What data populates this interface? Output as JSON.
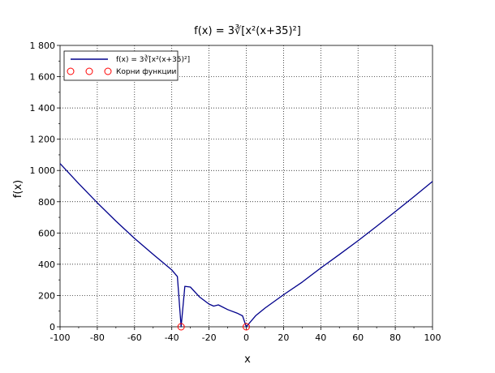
{
  "chart_data": {
    "type": "line",
    "title": "f(x) = 3∛[x²(x+35)²]",
    "xlabel": "x",
    "ylabel": "f(x)",
    "xlim": [
      -100,
      100
    ],
    "ylim": [
      0,
      1800
    ],
    "x_ticks": [
      -100,
      -80,
      -60,
      -40,
      -20,
      0,
      20,
      40,
      60,
      80,
      100
    ],
    "x_tick_labels": [
      "-100",
      "-80",
      "-60",
      "-40",
      "-20",
      "0",
      "20",
      "40",
      "60",
      "80",
      "100"
    ],
    "y_ticks": [
      0,
      200,
      400,
      600,
      800,
      1000,
      1200,
      1400,
      1600,
      1800
    ],
    "y_tick_labels": [
      "0",
      "200",
      "400",
      "600",
      "800",
      "1 000",
      "1 200",
      "1 400",
      "1 600",
      "1 800"
    ],
    "grid": true,
    "legend_position": "top-left",
    "series": [
      {
        "name": "f(x) = 3∛[x²(x+35)²]",
        "kind": "line",
        "color": "#00008b",
        "x": [
          -100,
          -90,
          -80,
          -70,
          -60,
          -50,
          -45,
          -40,
          -37,
          -35,
          -33,
          -30,
          -25,
          -20,
          -17.5,
          -15,
          -10,
          -5,
          -2,
          0,
          5,
          10,
          20,
          30,
          40,
          50,
          60,
          70,
          80,
          90,
          100
        ],
        "y": [
          1044.1,
          916.0,
          793.2,
          676.2,
          565.6,
          462.6,
          413.4,
          363.4,
          321.1,
          0,
          258.6,
          254.3,
          189.7,
          145.1,
          132.1,
          140.0,
          110.0,
          87.5,
          69.8,
          0,
          70.4,
          119.2,
          205.1,
          285.7,
          376.0,
          462.9,
          550.6,
          642.5,
          736.6,
          832.2,
          929.6
        ]
      },
      {
        "name": "Корни функции",
        "kind": "markers",
        "color": "#ff0000",
        "x": [
          -35,
          0
        ],
        "y": [
          0,
          0
        ]
      }
    ]
  }
}
